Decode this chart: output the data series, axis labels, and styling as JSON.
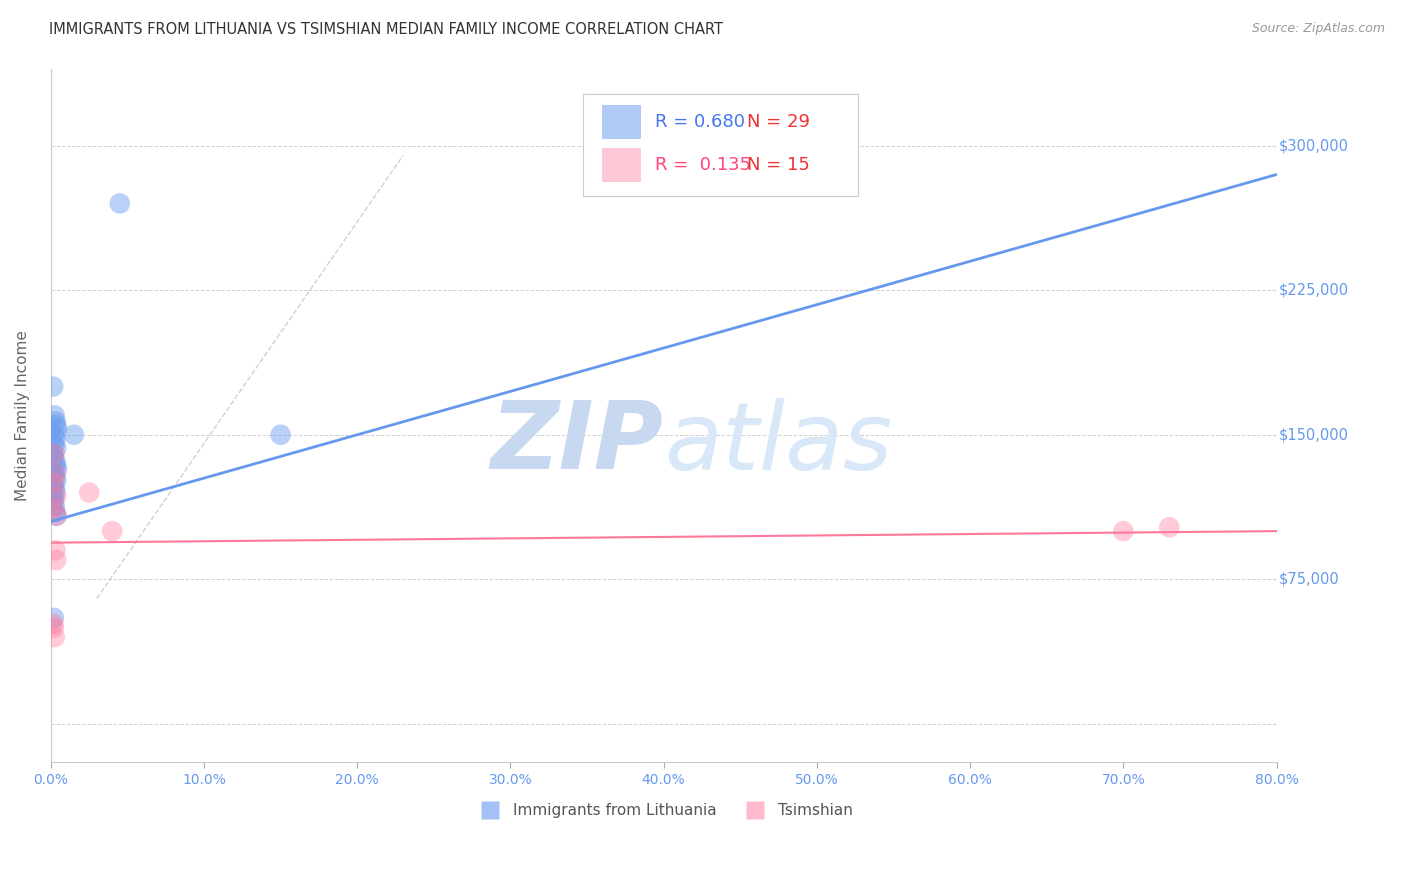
{
  "title": "IMMIGRANTS FROM LITHUANIA VS TSIMSHIAN MEDIAN FAMILY INCOME CORRELATION CHART",
  "source": "Source: ZipAtlas.com",
  "ylabel": "Median Family Income",
  "xlabel_vals": [
    0.0,
    10.0,
    20.0,
    30.0,
    40.0,
    50.0,
    60.0,
    70.0,
    80.0
  ],
  "ytick_vals": [
    0,
    75000,
    150000,
    225000,
    300000
  ],
  "ytick_labels": [
    "",
    "$75,000",
    "$150,000",
    "$225,000",
    "$300,000"
  ],
  "xmin": 0.0,
  "xmax": 80.0,
  "ymin": -20000,
  "ymax": 340000,
  "blue_R": 0.68,
  "blue_N": 29,
  "pink_R": 0.135,
  "pink_N": 15,
  "blue_color": "#6699EE",
  "pink_color": "#FF7799",
  "blue_scatter": [
    [
      0.15,
      175000
    ],
    [
      0.25,
      160000
    ],
    [
      0.3,
      157000
    ],
    [
      0.35,
      155000
    ],
    [
      0.4,
      153000
    ],
    [
      0.2,
      150000
    ],
    [
      0.3,
      148000
    ],
    [
      0.25,
      145000
    ],
    [
      0.35,
      143000
    ],
    [
      0.15,
      140000
    ],
    [
      0.2,
      138000
    ],
    [
      0.3,
      136000
    ],
    [
      0.35,
      134000
    ],
    [
      0.4,
      132000
    ],
    [
      0.2,
      130000
    ],
    [
      0.3,
      128000
    ],
    [
      0.35,
      126000
    ],
    [
      0.15,
      124000
    ],
    [
      0.25,
      122000
    ],
    [
      0.3,
      120000
    ],
    [
      0.15,
      118000
    ],
    [
      0.2,
      116000
    ],
    [
      0.25,
      113000
    ],
    [
      0.3,
      110000
    ],
    [
      0.35,
      108000
    ],
    [
      1.5,
      150000
    ],
    [
      15.0,
      150000
    ],
    [
      4.5,
      270000
    ],
    [
      0.2,
      55000
    ]
  ],
  "pink_scatter": [
    [
      0.25,
      140000
    ],
    [
      0.3,
      130000
    ],
    [
      0.2,
      125000
    ],
    [
      0.35,
      118000
    ],
    [
      0.15,
      112000
    ],
    [
      0.4,
      108000
    ],
    [
      2.5,
      120000
    ],
    [
      4.0,
      100000
    ],
    [
      0.3,
      90000
    ],
    [
      0.35,
      85000
    ],
    [
      0.15,
      52000
    ],
    [
      0.2,
      50000
    ],
    [
      70.0,
      100000
    ],
    [
      73.0,
      102000
    ],
    [
      0.25,
      45000
    ]
  ],
  "blue_line_x": [
    0.0,
    80.0
  ],
  "blue_line_y": [
    105000,
    285000
  ],
  "pink_line_x": [
    0.0,
    80.0
  ],
  "pink_line_y": [
    94000,
    100000
  ],
  "diag_line_x": [
    3.0,
    23.0
  ],
  "diag_line_y": [
    65000,
    295000
  ],
  "watermark_zip": "ZIP",
  "watermark_atlas": "atlas",
  "bg_color": "#FFFFFF",
  "grid_color": "#CCCCCC",
  "title_color": "#333333",
  "axis_tick_color": "#6699EE",
  "ytick_right_color": "#6699EE",
  "legend_R_color_blue": "#4477EE",
  "legend_R_color_pink": "#FF4477",
  "legend_N_color_blue": "#EE3333",
  "legend_N_color_pink": "#EE3333"
}
